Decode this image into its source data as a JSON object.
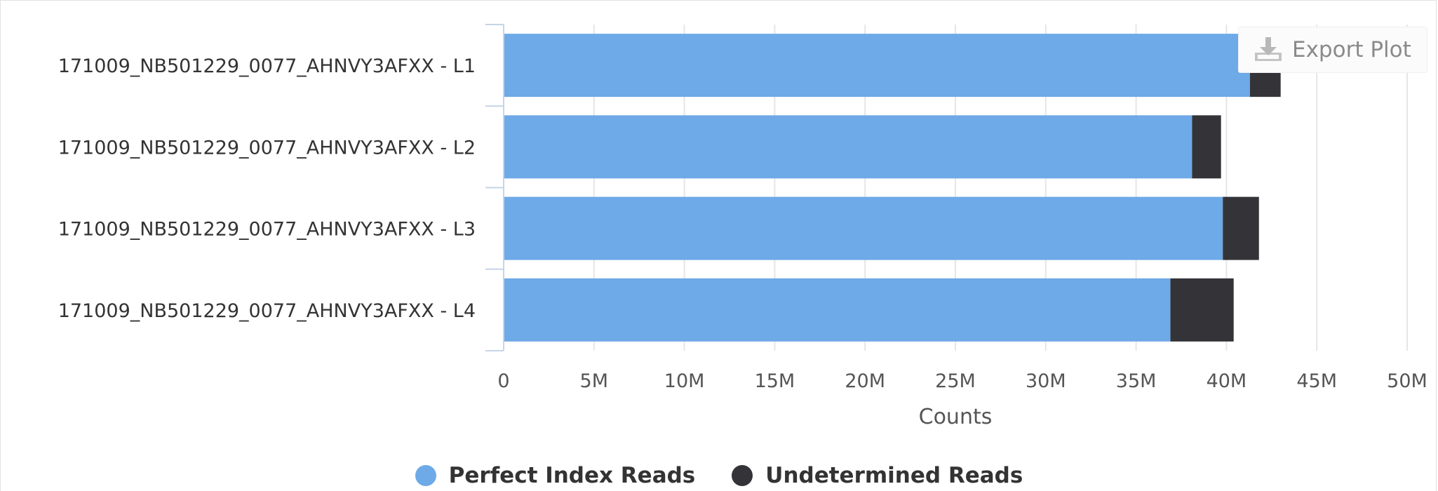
{
  "export_button": {
    "label": "Export Plot",
    "icon": "download-icon"
  },
  "chart_data": {
    "type": "bar",
    "orientation": "horizontal",
    "stacked": true,
    "categories": [
      "171009_NB501229_0077_AHNVY3AFXX - L1",
      "171009_NB501229_0077_AHNVY3AFXX - L2",
      "171009_NB501229_0077_AHNVY3AFXX - L3",
      "171009_NB501229_0077_AHNVY3AFXX - L4"
    ],
    "series": [
      {
        "name": "Perfect Index Reads",
        "color": "#6ea9e8",
        "values": [
          41.3,
          38.1,
          39.8,
          36.9
        ]
      },
      {
        "name": "Undetermined Reads",
        "color": "#343438",
        "values": [
          1.7,
          1.6,
          2.0,
          3.5
        ]
      }
    ],
    "xlabel": "Counts",
    "xlim": [
      0,
      50000000
    ],
    "x_unit": "M",
    "ticks": [
      "0",
      "5M",
      "10M",
      "15M",
      "20M",
      "25M",
      "30M",
      "35M",
      "40M",
      "45M",
      "50M"
    ],
    "tick_values": [
      0,
      5,
      10,
      15,
      20,
      25,
      30,
      35,
      40,
      45,
      50
    ],
    "grid": true,
    "legend_position": "bottom"
  }
}
